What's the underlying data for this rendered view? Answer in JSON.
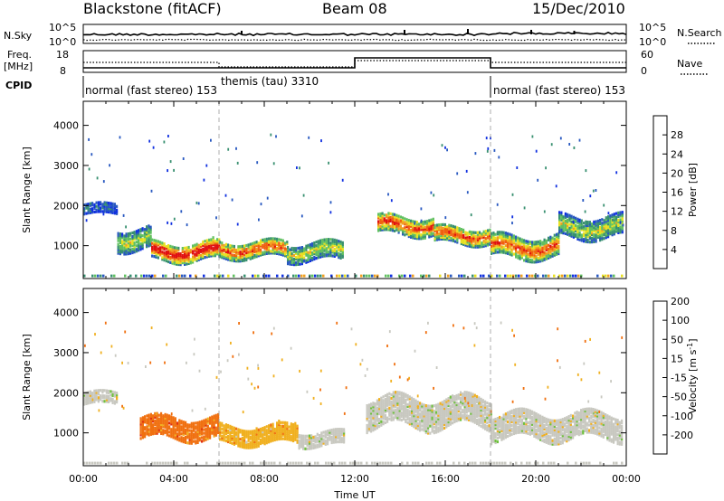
{
  "header": {
    "radar_title": "Blackstone (fitACF)",
    "beam": "Beam 08",
    "date": "15/Dec/2010"
  },
  "strip": {
    "nsky_label": "N.Sky",
    "nsearch_label": "N.Search",
    "nsky_ticks": [
      "10^5",
      "10^0"
    ],
    "nsky_right_ticks": [
      "10^5",
      "10^0"
    ],
    "freq_label_1": "Freq.",
    "freq_label_2": "[MHz]",
    "freq_ticks": [
      "18",
      "8"
    ],
    "nave_label": "Nave",
    "nave_ticks": [
      "60",
      "0"
    ],
    "cpid_label": "CPID",
    "modes": [
      {
        "text": "normal (fast stereo) 153",
        "start_hour": 0
      },
      {
        "text": "themis (tau) 3310",
        "start_hour": 6
      },
      {
        "text": "normal (fast stereo) 153",
        "start_hour": 18
      }
    ]
  },
  "axes": {
    "ylabel": "Slant Range [km]",
    "xlabel": "Time UT",
    "yticks": [
      1000,
      2000,
      3000,
      4000
    ],
    "xticks": [
      "00:00",
      "04:00",
      "08:00",
      "12:00",
      "16:00",
      "20:00",
      "00:00"
    ]
  },
  "colorbars": {
    "power_label": "Power [dB]",
    "power_ticks": [
      "4",
      "8",
      "12",
      "16",
      "20",
      "24",
      "28"
    ],
    "velocity_label": "Velocity [m s",
    "velocity_exp": "-1",
    "velocity_label_end": "]",
    "velocity_ticks": [
      "200",
      "100",
      "50",
      "15",
      "-15",
      "-50",
      "-100",
      "-200"
    ]
  },
  "chart_data": [
    {
      "type": "heatmap",
      "name_field": "power",
      "xlim_hours": [
        0,
        24
      ],
      "ylim_km": [
        180,
        4600
      ],
      "value_range_db": [
        0,
        30
      ],
      "colors": [
        "#1030e0",
        "#2858c0",
        "#389070",
        "#60c060",
        "#e8e020",
        "#f0a020",
        "#f06010",
        "#e01010"
      ],
      "regions": [
        {
          "t": [
            0.0,
            1.5
          ],
          "r_center": 1950,
          "r_width": 250,
          "level": 1
        },
        {
          "t": [
            1.5,
            3.0
          ],
          "r_center": 1200,
          "r_width": 500,
          "level": 3
        },
        {
          "t": [
            3.0,
            6.0
          ],
          "r_center": 900,
          "r_width": 450,
          "level": 6
        },
        {
          "t": [
            6.0,
            9.0
          ],
          "r_center": 950,
          "r_width": 400,
          "level": 5
        },
        {
          "t": [
            9.0,
            11.5
          ],
          "r_center": 900,
          "r_width": 450,
          "level": 3
        },
        {
          "t": [
            13.0,
            15.5
          ],
          "r_center": 1550,
          "r_width": 450,
          "level": 5
        },
        {
          "t": [
            15.5,
            18.0
          ],
          "r_center": 1300,
          "r_width": 400,
          "level": 5
        },
        {
          "t": [
            18.0,
            21.0
          ],
          "r_center": 1000,
          "r_width": 500,
          "level": 5
        },
        {
          "t": [
            21.0,
            23.8
          ],
          "r_center": 1500,
          "r_width": 500,
          "level": 3
        }
      ]
    },
    {
      "type": "heatmap",
      "name_field": "velocity",
      "xlim_hours": [
        0,
        24
      ],
      "ylim_km": [
        180,
        4600
      ],
      "value_range_ms": [
        -200,
        200
      ],
      "colors": [
        "#1838c0",
        "#3060b0",
        "#2e8e48",
        "#70c040",
        "#c8c8c0",
        "#f0b020",
        "#f07010",
        "#e03010"
      ],
      "regions": [
        {
          "t": [
            0.0,
            1.5
          ],
          "r_center": 1900,
          "r_width": 300,
          "level": 4
        },
        {
          "t": [
            2.5,
            6.0
          ],
          "r_center": 1150,
          "r_width": 500,
          "level": 6
        },
        {
          "t": [
            6.0,
            9.5
          ],
          "r_center": 1000,
          "r_width": 450,
          "level": 5
        },
        {
          "t": [
            9.5,
            11.5
          ],
          "r_center": 900,
          "r_width": 350,
          "level": 4
        },
        {
          "t": [
            12.5,
            18.0
          ],
          "r_center": 1550,
          "r_width": 700,
          "level": 4
        },
        {
          "t": [
            18.0,
            23.8
          ],
          "r_center": 1200,
          "r_width": 600,
          "level": 4
        }
      ]
    }
  ]
}
